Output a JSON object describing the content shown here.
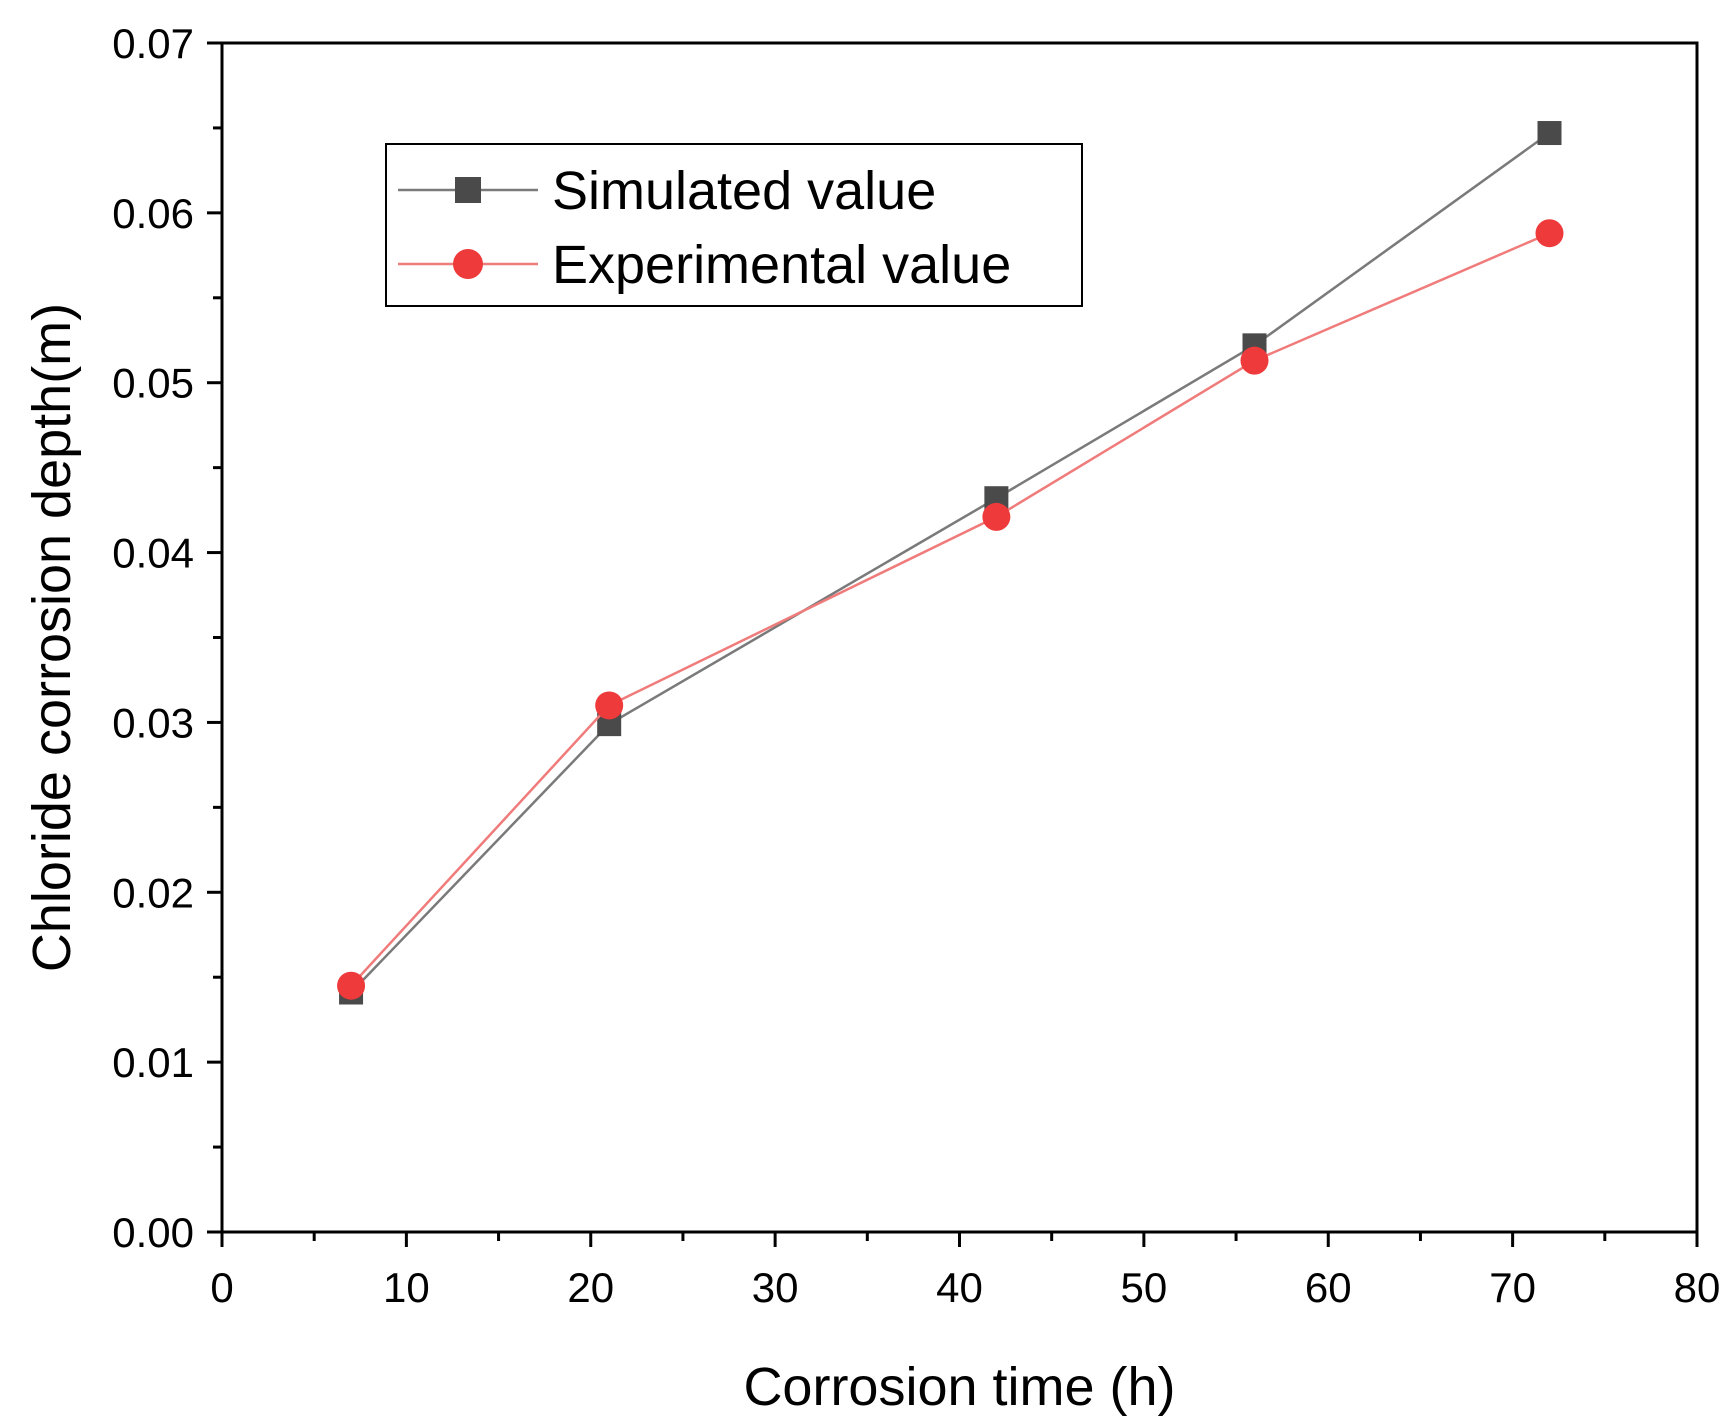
{
  "chart_data": {
    "type": "line",
    "title": "",
    "xlabel": "Corrosion time (h)",
    "ylabel": "Chloride corrosion depth(m)",
    "xlim": [
      0,
      80
    ],
    "ylim": [
      0,
      0.07
    ],
    "x_ticks": [
      0,
      10,
      20,
      30,
      40,
      50,
      60,
      70,
      80
    ],
    "x_tick_labels": [
      "0",
      "10",
      "20",
      "30",
      "40",
      "50",
      "60",
      "70",
      "80"
    ],
    "y_ticks": [
      0,
      0.01,
      0.02,
      0.03,
      0.04,
      0.05,
      0.06,
      0.07
    ],
    "y_tick_labels": [
      "0.00",
      "0.01",
      "0.02",
      "0.03",
      "0.04",
      "0.05",
      "0.06",
      "0.07"
    ],
    "grid": false,
    "legend_position": "top-left",
    "series": [
      {
        "name": "Simulated value",
        "marker": "square",
        "color": "#4a4a4a",
        "line_color": "#7a7a7a",
        "x": [
          7,
          21,
          42,
          56,
          72
        ],
        "y": [
          0.0141,
          0.0299,
          0.0432,
          0.0522,
          0.0647
        ]
      },
      {
        "name": "Experimental value",
        "marker": "circle",
        "color": "#ee3a3a",
        "line_color": "#f07b7b",
        "x": [
          7,
          21,
          42,
          56,
          72
        ],
        "y": [
          0.0145,
          0.031,
          0.0421,
          0.0513,
          0.0588
        ]
      }
    ]
  }
}
